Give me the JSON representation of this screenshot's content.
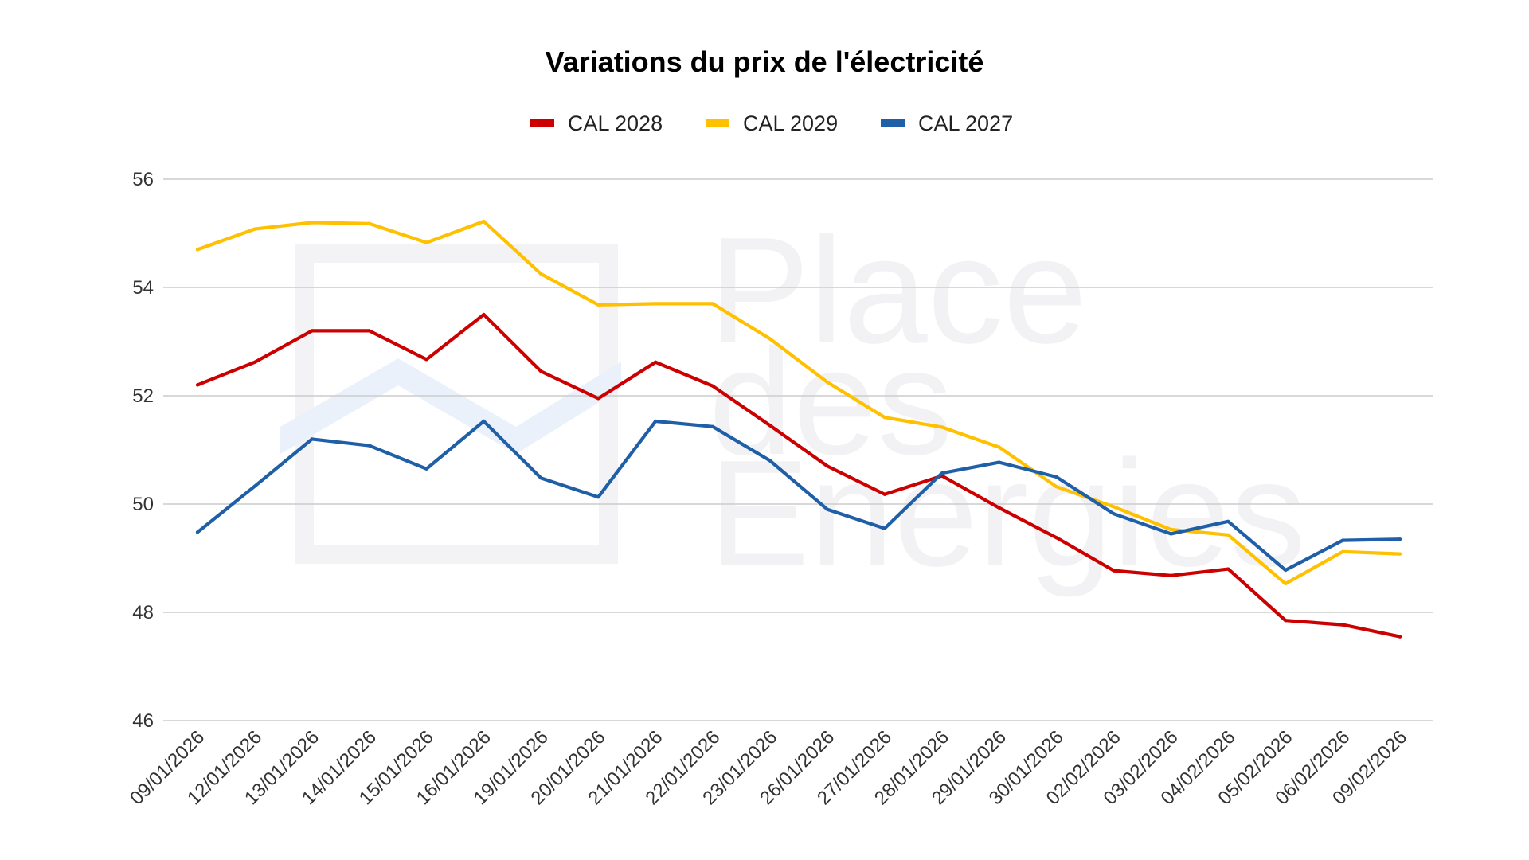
{
  "chart_data": {
    "type": "line",
    "title": "Variations du prix de l'électricité",
    "xlabel": "",
    "ylabel": "",
    "ylim": [
      46,
      56
    ],
    "yticks": [
      46,
      48,
      50,
      52,
      54,
      56
    ],
    "grid": true,
    "legend_position": "top",
    "categories": [
      "09/01/2026",
      "12/01/2026",
      "13/01/2026",
      "14/01/2026",
      "15/01/2026",
      "16/01/2026",
      "19/01/2026",
      "20/01/2026",
      "21/01/2026",
      "22/01/2026",
      "23/01/2026",
      "26/01/2026",
      "27/01/2026",
      "28/01/2026",
      "29/01/2026",
      "30/01/2026",
      "02/02/2026",
      "03/02/2026",
      "04/02/2026",
      "05/02/2026",
      "06/02/2026",
      "09/02/2026"
    ],
    "series": [
      {
        "name": "CAL 2028",
        "color": "#cc0000",
        "values": [
          52.2,
          52.62,
          53.2,
          53.2,
          52.67,
          53.5,
          52.45,
          51.95,
          52.62,
          52.18,
          51.45,
          50.7,
          50.18,
          50.52,
          49.93,
          49.38,
          48.77,
          48.68,
          48.8,
          47.85,
          47.77,
          47.55
        ]
      },
      {
        "name": "CAL 2029",
        "color": "#ffc000",
        "values": [
          54.7,
          55.08,
          55.2,
          55.18,
          54.83,
          55.22,
          54.25,
          53.68,
          53.7,
          53.7,
          53.05,
          52.25,
          51.6,
          51.42,
          51.05,
          50.32,
          49.95,
          49.53,
          49.43,
          48.53,
          49.12,
          49.08
        ]
      },
      {
        "name": "CAL 2027",
        "color": "#1f5fa8",
        "values": [
          49.48,
          50.33,
          51.2,
          51.08,
          50.65,
          51.53,
          50.48,
          50.13,
          51.53,
          51.43,
          50.8,
          49.9,
          49.55,
          50.57,
          50.77,
          50.5,
          49.82,
          49.45,
          49.68,
          48.78,
          49.33,
          49.35
        ]
      }
    ]
  },
  "watermark": {
    "lines": [
      "Place",
      "des",
      "Energies"
    ]
  }
}
